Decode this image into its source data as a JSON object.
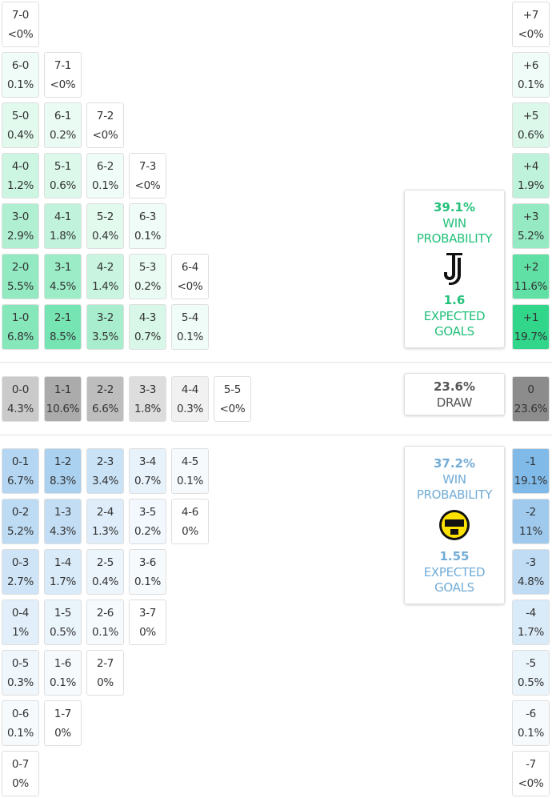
{
  "home": {
    "rows": [
      [
        {
          "score": "7-0",
          "prob": "<0%"
        }
      ],
      [
        {
          "score": "6-0",
          "prob": "0.1%"
        },
        {
          "score": "7-1",
          "prob": "<0%"
        }
      ],
      [
        {
          "score": "5-0",
          "prob": "0.4%"
        },
        {
          "score": "6-1",
          "prob": "0.2%"
        },
        {
          "score": "7-2",
          "prob": "<0%"
        }
      ],
      [
        {
          "score": "4-0",
          "prob": "1.2%"
        },
        {
          "score": "5-1",
          "prob": "0.6%"
        },
        {
          "score": "6-2",
          "prob": "0.1%"
        },
        {
          "score": "7-3",
          "prob": "<0%"
        }
      ],
      [
        {
          "score": "3-0",
          "prob": "2.9%"
        },
        {
          "score": "4-1",
          "prob": "1.8%"
        },
        {
          "score": "5-2",
          "prob": "0.4%"
        },
        {
          "score": "6-3",
          "prob": "0.1%"
        }
      ],
      [
        {
          "score": "2-0",
          "prob": "5.5%"
        },
        {
          "score": "3-1",
          "prob": "4.5%"
        },
        {
          "score": "4-2",
          "prob": "1.4%"
        },
        {
          "score": "5-3",
          "prob": "0.2%"
        },
        {
          "score": "6-4",
          "prob": "<0%"
        }
      ],
      [
        {
          "score": "1-0",
          "prob": "6.8%"
        },
        {
          "score": "2-1",
          "prob": "8.5%"
        },
        {
          "score": "3-2",
          "prob": "3.5%"
        },
        {
          "score": "4-3",
          "prob": "0.7%"
        },
        {
          "score": "5-4",
          "prob": "0.1%"
        }
      ]
    ],
    "margins": [
      {
        "label": "+7",
        "prob": "<0%"
      },
      {
        "label": "+6",
        "prob": "0.1%"
      },
      {
        "label": "+5",
        "prob": "0.6%"
      },
      {
        "label": "+4",
        "prob": "1.9%"
      },
      {
        "label": "+3",
        "prob": "5.2%"
      },
      {
        "label": "+2",
        "prob": "11.6%"
      },
      {
        "label": "+1",
        "prob": "19.7%"
      }
    ],
    "summary": {
      "win_pct": "39.1%",
      "win_label": "WIN PROBABILITY",
      "xg": "1.6",
      "xg_label": "EXPECTED GOALS"
    }
  },
  "draw": {
    "rows": [
      [
        {
          "score": "0-0",
          "prob": "4.3%"
        },
        {
          "score": "1-1",
          "prob": "10.6%"
        },
        {
          "score": "2-2",
          "prob": "6.6%"
        },
        {
          "score": "3-3",
          "prob": "1.8%"
        },
        {
          "score": "4-4",
          "prob": "0.3%"
        },
        {
          "score": "5-5",
          "prob": "<0%"
        }
      ]
    ],
    "margins": [
      {
        "label": "0",
        "prob": "23.6%"
      }
    ],
    "summary": {
      "pct": "23.6%",
      "label": "DRAW"
    }
  },
  "away": {
    "rows": [
      [
        {
          "score": "0-1",
          "prob": "6.7%"
        },
        {
          "score": "1-2",
          "prob": "8.3%"
        },
        {
          "score": "2-3",
          "prob": "3.4%"
        },
        {
          "score": "3-4",
          "prob": "0.7%"
        },
        {
          "score": "4-5",
          "prob": "0.1%"
        }
      ],
      [
        {
          "score": "0-2",
          "prob": "5.2%"
        },
        {
          "score": "1-3",
          "prob": "4.3%"
        },
        {
          "score": "2-4",
          "prob": "1.3%"
        },
        {
          "score": "3-5",
          "prob": "0.2%"
        },
        {
          "score": "4-6",
          "prob": "0%"
        }
      ],
      [
        {
          "score": "0-3",
          "prob": "2.7%"
        },
        {
          "score": "1-4",
          "prob": "1.7%"
        },
        {
          "score": "2-5",
          "prob": "0.4%"
        },
        {
          "score": "3-6",
          "prob": "0.1%"
        }
      ],
      [
        {
          "score": "0-4",
          "prob": "1%"
        },
        {
          "score": "1-5",
          "prob": "0.5%"
        },
        {
          "score": "2-6",
          "prob": "0.1%"
        },
        {
          "score": "3-7",
          "prob": "0%"
        }
      ],
      [
        {
          "score": "0-5",
          "prob": "0.3%"
        },
        {
          "score": "1-6",
          "prob": "0.1%"
        },
        {
          "score": "2-7",
          "prob": "0%"
        }
      ],
      [
        {
          "score": "0-6",
          "prob": "0.1%"
        },
        {
          "score": "1-7",
          "prob": "0%"
        }
      ],
      [
        {
          "score": "0-7",
          "prob": "0%"
        }
      ]
    ],
    "margins": [
      {
        "label": "-1",
        "prob": "19.1%"
      },
      {
        "label": "-2",
        "prob": "11%"
      },
      {
        "label": "-3",
        "prob": "4.8%"
      },
      {
        "label": "-4",
        "prob": "1.7%"
      },
      {
        "label": "-5",
        "prob": "0.5%"
      },
      {
        "label": "-6",
        "prob": "0.1%"
      },
      {
        "label": "-7",
        "prob": "<0%"
      }
    ],
    "summary": {
      "win_pct": "37.2%",
      "win_label": "WIN PROBABILITY",
      "xg": "1.55",
      "xg_label": "EXPECTED GOALS"
    }
  }
}
